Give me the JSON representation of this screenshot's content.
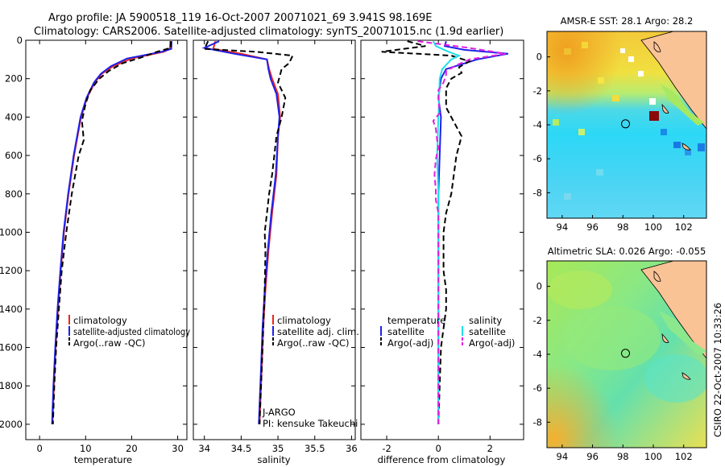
{
  "title_line1": "Argo profile: JA 5900518_119 16-Oct-2007 20071021_69 3.941S 98.169E",
  "title_line2": "Climatology: CARS2006. Satellite-adjusted climatology: synTS_20071015.nc (1.9d earlier)",
  "credit": "CSIRO 22-Oct-2007 10:33:26",
  "chart_data": [
    {
      "type": "line",
      "name": "temperature-panel",
      "xlabel": "temperature",
      "ylabel": "",
      "xlim": [
        -3,
        32
      ],
      "ylim": [
        0,
        2080
      ],
      "xticks": [
        0,
        10,
        20,
        30
      ],
      "yticks": [
        0,
        200,
        400,
        600,
        800,
        1000,
        1200,
        1400,
        1600,
        1800,
        2000
      ],
      "legend": [
        "climatology",
        "satellite-adjusted climatology",
        "Argo(..raw -QC)"
      ],
      "series": [
        {
          "name": "climatology",
          "color": "#e8261f",
          "points": [
            [
              28.4,
              5
            ],
            [
              28.3,
              45
            ],
            [
              27,
              60
            ],
            [
              20,
              95
            ],
            [
              16,
              135
            ],
            [
              13.5,
              175
            ],
            [
              12,
              220
            ],
            [
              10.3,
              300
            ],
            [
              9,
              400
            ],
            [
              7.5,
              600
            ],
            [
              6.3,
              800
            ],
            [
              5.3,
              1000
            ],
            [
              4.6,
              1200
            ],
            [
              4,
              1400
            ],
            [
              3.5,
              1600
            ],
            [
              3.1,
              1800
            ],
            [
              2.8,
              2000
            ]
          ]
        },
        {
          "name": "satellite-adjusted climatology",
          "color": "#2020e8",
          "points": [
            [
              28.7,
              5
            ],
            [
              28.6,
              45
            ],
            [
              26.5,
              60
            ],
            [
              19,
              95
            ],
            [
              15.5,
              135
            ],
            [
              13.3,
              175
            ],
            [
              11.8,
              220
            ],
            [
              10.2,
              300
            ],
            [
              8.9,
              400
            ],
            [
              7.4,
              600
            ],
            [
              6.2,
              800
            ],
            [
              5.2,
              1000
            ],
            [
              4.5,
              1200
            ],
            [
              3.9,
              1400
            ],
            [
              3.4,
              1600
            ],
            [
              3,
              1800
            ],
            [
              2.7,
              2000
            ]
          ]
        },
        {
          "name": "Argo(..raw -QC)",
          "color": "#000000",
          "dash": true,
          "points": [
            [
              28.5,
              5
            ],
            [
              28.5,
              40
            ],
            [
              25.5,
              60
            ],
            [
              22,
              90
            ],
            [
              18,
              120
            ],
            [
              15,
              160
            ],
            [
              13,
              200
            ],
            [
              11,
              260
            ],
            [
              10,
              330
            ],
            [
              9.2,
              420
            ],
            [
              9.6,
              520
            ],
            [
              8.5,
              600
            ],
            [
              7,
              800
            ],
            [
              5.8,
              1000
            ],
            [
              4.8,
              1200
            ],
            [
              4.2,
              1400
            ],
            [
              3.6,
              1600
            ],
            [
              3.2,
              1800
            ],
            [
              2.9,
              2000
            ]
          ]
        }
      ]
    },
    {
      "type": "line",
      "name": "salinity-panel",
      "xlabel": "salinity",
      "xlim": [
        33.85,
        36.05
      ],
      "ylim": [
        0,
        2080
      ],
      "xticks": [
        34,
        34.5,
        35,
        35.5,
        36
      ],
      "legend": [
        "climatology",
        "satellite adj. clim.",
        "Argo(..raw -QC)"
      ],
      "annotations": [
        "J-ARGO",
        "PI: kensuke Takeuchi"
      ],
      "series": [
        {
          "name": "climatology",
          "color": "#e8261f",
          "points": [
            [
              34.15,
              5
            ],
            [
              34.12,
              45
            ],
            [
              34.5,
              70
            ],
            [
              34.85,
              100
            ],
            [
              34.88,
              150
            ],
            [
              34.92,
              200
            ],
            [
              35.0,
              280
            ],
            [
              35.03,
              400
            ],
            [
              35.0,
              500
            ],
            [
              34.98,
              700
            ],
            [
              34.92,
              900
            ],
            [
              34.87,
              1100
            ],
            [
              34.83,
              1300
            ],
            [
              34.8,
              1500
            ],
            [
              34.78,
              1700
            ],
            [
              34.76,
              1900
            ],
            [
              34.75,
              2000
            ]
          ]
        },
        {
          "name": "satellite adj. clim.",
          "color": "#2020e8",
          "points": [
            [
              34.2,
              5
            ],
            [
              34.0,
              40
            ],
            [
              34.4,
              70
            ],
            [
              34.85,
              100
            ],
            [
              34.87,
              150
            ],
            [
              34.9,
              200
            ],
            [
              34.98,
              280
            ],
            [
              35.02,
              400
            ],
            [
              35.0,
              500
            ],
            [
              34.97,
              700
            ],
            [
              34.91,
              900
            ],
            [
              34.86,
              1100
            ],
            [
              34.82,
              1300
            ],
            [
              34.79,
              1500
            ],
            [
              34.77,
              1700
            ],
            [
              34.75,
              1900
            ],
            [
              34.74,
              2000
            ]
          ]
        },
        {
          "name": "Argo(..raw -QC)",
          "color": "#000000",
          "dash": true,
          "points": [
            [
              34.05,
              5
            ],
            [
              34.0,
              45
            ],
            [
              34.7,
              60
            ],
            [
              35.2,
              80
            ],
            [
              35.15,
              120
            ],
            [
              35.05,
              150
            ],
            [
              35.0,
              220
            ],
            [
              35.1,
              300
            ],
            [
              35.05,
              400
            ],
            [
              34.98,
              500
            ],
            [
              34.95,
              600
            ],
            [
              34.92,
              700
            ],
            [
              34.88,
              800
            ],
            [
              34.85,
              900
            ],
            [
              34.82,
              1000
            ],
            [
              34.83,
              1100
            ],
            [
              34.82,
              1300
            ],
            [
              34.8,
              1500
            ],
            [
              34.78,
              1700
            ],
            [
              34.76,
              1900
            ],
            [
              34.75,
              2000
            ]
          ]
        }
      ]
    },
    {
      "type": "line",
      "name": "difference-panel",
      "xlabel": "difference from climatology",
      "xlim": [
        -3,
        3.3
      ],
      "ylim": [
        0,
        2080
      ],
      "xticks": [
        -2,
        0,
        2
      ],
      "legend_headers": [
        "temperature",
        "salinity"
      ],
      "legend": [
        "satellite",
        "Argo(-adj)",
        "satellite",
        "Argo(-adj)"
      ],
      "series": [
        {
          "name": "temperature satellite",
          "color": "#2020e8",
          "points": [
            [
              0.3,
              5
            ],
            [
              0.25,
              30
            ],
            [
              1.0,
              50
            ],
            [
              2.7,
              70
            ],
            [
              1.5,
              100
            ],
            [
              0.3,
              150
            ],
            [
              0.1,
              200
            ],
            [
              0,
              300
            ],
            [
              0.1,
              400
            ],
            [
              0.05,
              600
            ],
            [
              0,
              800
            ],
            [
              0,
              1000
            ],
            [
              0,
              1200
            ],
            [
              0,
              1400
            ],
            [
              0,
              1600
            ],
            [
              0,
              1800
            ],
            [
              0,
              2000
            ]
          ]
        },
        {
          "name": "temperature Argo(-adj)",
          "color": "#000000",
          "dash": true,
          "points": [
            [
              -1.2,
              5
            ],
            [
              -0.5,
              30
            ],
            [
              -2.2,
              60
            ],
            [
              0.5,
              80
            ],
            [
              1.2,
              110
            ],
            [
              0.8,
              140
            ],
            [
              0.9,
              170
            ],
            [
              0.5,
              200
            ],
            [
              0.3,
              250
            ],
            [
              0.3,
              350
            ],
            [
              0.5,
              400
            ],
            [
              0.7,
              450
            ],
            [
              0.9,
              500
            ],
            [
              0.7,
              600
            ],
            [
              0.6,
              700
            ],
            [
              0.5,
              800
            ],
            [
              0.3,
              900
            ],
            [
              0.2,
              1000
            ],
            [
              0.2,
              1200
            ],
            [
              0.3,
              1300
            ],
            [
              0.3,
              1400
            ],
            [
              0.1,
              1600
            ],
            [
              0.05,
              1800
            ],
            [
              0,
              2000
            ]
          ]
        },
        {
          "name": "salinity satellite",
          "color": "#22dfe8",
          "points": [
            [
              -0.2,
              5
            ],
            [
              -0.1,
              30
            ],
            [
              0.4,
              60
            ],
            [
              0.8,
              80
            ],
            [
              0.5,
              100
            ],
            [
              0.15,
              150
            ],
            [
              0.05,
              200
            ],
            [
              0.0,
              400
            ],
            [
              -0.05,
              600
            ],
            [
              0,
              800
            ],
            [
              0,
              1000
            ],
            [
              0,
              1200
            ],
            [
              0,
              1400
            ],
            [
              0,
              1600
            ],
            [
              0,
              1800
            ],
            [
              0,
              2000
            ]
          ]
        },
        {
          "name": "salinity Argo(-adj)",
          "color": "#e020e0",
          "dash": true,
          "points": [
            [
              -0.8,
              5
            ],
            [
              1.2,
              40
            ],
            [
              2.6,
              70
            ],
            [
              1.2,
              100
            ],
            [
              0.7,
              130
            ],
            [
              0.3,
              160
            ],
            [
              0.3,
              180
            ],
            [
              0.2,
              220
            ],
            [
              0.0,
              260
            ],
            [
              0.0,
              300
            ],
            [
              0.05,
              380
            ],
            [
              -0.2,
              420
            ],
            [
              -0.1,
              460
            ],
            [
              -0.05,
              520
            ],
            [
              0.0,
              560
            ],
            [
              -0.1,
              620
            ],
            [
              -0.15,
              700
            ],
            [
              -0.1,
              780
            ],
            [
              -0.1,
              830
            ],
            [
              0,
              900
            ],
            [
              0,
              1000
            ],
            [
              0,
              1200
            ],
            [
              0,
              1400
            ],
            [
              0,
              1600
            ],
            [
              0,
              1800
            ],
            [
              0,
              2000
            ]
          ]
        }
      ]
    },
    {
      "type": "heatmap",
      "name": "sst-map",
      "title": "AMSR-E SST: 28.1 Argo: 28.2",
      "xlim": [
        93,
        103.5
      ],
      "ylim": [
        -9.5,
        1.5
      ],
      "xticks": [
        94,
        96,
        98,
        100,
        102
      ],
      "yticks": [
        0,
        -2,
        -4,
        -6,
        -8
      ],
      "marker": [
        98.169,
        -3.941
      ]
    },
    {
      "type": "heatmap",
      "name": "sla-map",
      "title": "Altimetric SLA: 0.026 Argo: -0.055",
      "xlim": [
        93,
        103.5
      ],
      "ylim": [
        -9.5,
        1.5
      ],
      "xticks": [
        94,
        96,
        98,
        100,
        102
      ],
      "yticks": [
        0,
        -2,
        -4,
        -6,
        -8
      ],
      "marker": [
        98.169,
        -3.941
      ]
    }
  ]
}
